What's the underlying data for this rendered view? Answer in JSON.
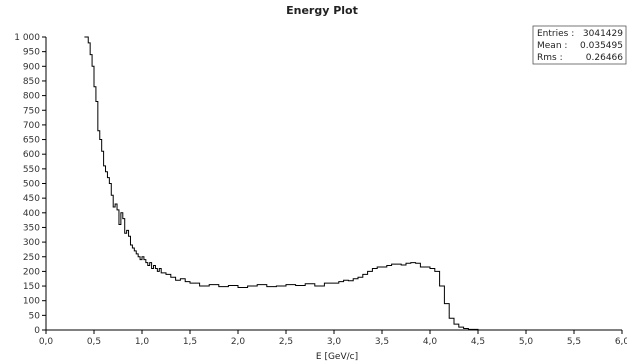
{
  "chart_data": {
    "type": "line",
    "title": "Energy Plot",
    "xlabel": "E [GeV/c]",
    "ylabel": "",
    "xlim": [
      0.0,
      6.0
    ],
    "ylim": [
      0,
      1000
    ],
    "x_ticks": [
      "0,0",
      "0,5",
      "1,0",
      "1,5",
      "2,0",
      "2,5",
      "3,0",
      "3,5",
      "4,0",
      "4,5",
      "5,0",
      "5,5",
      "6,0"
    ],
    "x_tick_values": [
      0.0,
      0.5,
      1.0,
      1.5,
      2.0,
      2.5,
      3.0,
      3.5,
      4.0,
      4.5,
      5.0,
      5.5,
      6.0
    ],
    "y_ticks": [
      "0",
      "50",
      "100",
      "150",
      "200",
      "250",
      "300",
      "350",
      "400",
      "450",
      "500",
      "550",
      "600",
      "650",
      "700",
      "750",
      "800",
      "850",
      "900",
      "950",
      "1 000"
    ],
    "y_tick_values": [
      0,
      50,
      100,
      150,
      200,
      250,
      300,
      350,
      400,
      450,
      500,
      550,
      600,
      650,
      700,
      750,
      800,
      850,
      900,
      950,
      1000
    ],
    "grid": false,
    "legend": "none",
    "series": [
      {
        "x": [
          0.4,
          0.44,
          0.46,
          0.48,
          0.5,
          0.52,
          0.54,
          0.56,
          0.58,
          0.6,
          0.62,
          0.64,
          0.66,
          0.68,
          0.7,
          0.72,
          0.74,
          0.76,
          0.78,
          0.8,
          0.82,
          0.84,
          0.86,
          0.88,
          0.9,
          0.92,
          0.94,
          0.96,
          0.98,
          1.0,
          1.02,
          1.04,
          1.06,
          1.08,
          1.1,
          1.12,
          1.14,
          1.16,
          1.18,
          1.2,
          1.25,
          1.3,
          1.35,
          1.4,
          1.45,
          1.5,
          1.6,
          1.7,
          1.8,
          1.9,
          2.0,
          2.1,
          2.2,
          2.3,
          2.4,
          2.5,
          2.6,
          2.7,
          2.8,
          2.9,
          3.0,
          3.05,
          3.1,
          3.15,
          3.2,
          3.25,
          3.3,
          3.35,
          3.4,
          3.45,
          3.5,
          3.55,
          3.6,
          3.65,
          3.7,
          3.75,
          3.8,
          3.85,
          3.9,
          3.95,
          4.0,
          4.05,
          4.1,
          4.15,
          4.2,
          4.25,
          4.3,
          4.35,
          4.4,
          4.5,
          5.0,
          5.5,
          6.0
        ],
        "values": [
          1000,
          980,
          940,
          900,
          830,
          780,
          680,
          650,
          610,
          560,
          540,
          520,
          500,
          460,
          420,
          430,
          410,
          360,
          400,
          380,
          330,
          340,
          320,
          290,
          280,
          270,
          260,
          250,
          240,
          250,
          240,
          230,
          220,
          230,
          210,
          220,
          210,
          200,
          210,
          195,
          190,
          180,
          170,
          175,
          165,
          160,
          150,
          155,
          148,
          152,
          145,
          150,
          155,
          148,
          150,
          155,
          152,
          158,
          150,
          160,
          160,
          165,
          170,
          168,
          175,
          180,
          190,
          200,
          210,
          215,
          215,
          220,
          225,
          225,
          222,
          228,
          230,
          228,
          215,
          215,
          210,
          200,
          150,
          90,
          40,
          20,
          10,
          5,
          2,
          0,
          0,
          0,
          0
        ]
      }
    ],
    "stats": {
      "entries_label": "Entries :",
      "entries_value": "3041429",
      "mean_label": "Mean :",
      "mean_value": "0.035495",
      "rms_label": "Rms :",
      "rms_value": "0.26466"
    }
  }
}
